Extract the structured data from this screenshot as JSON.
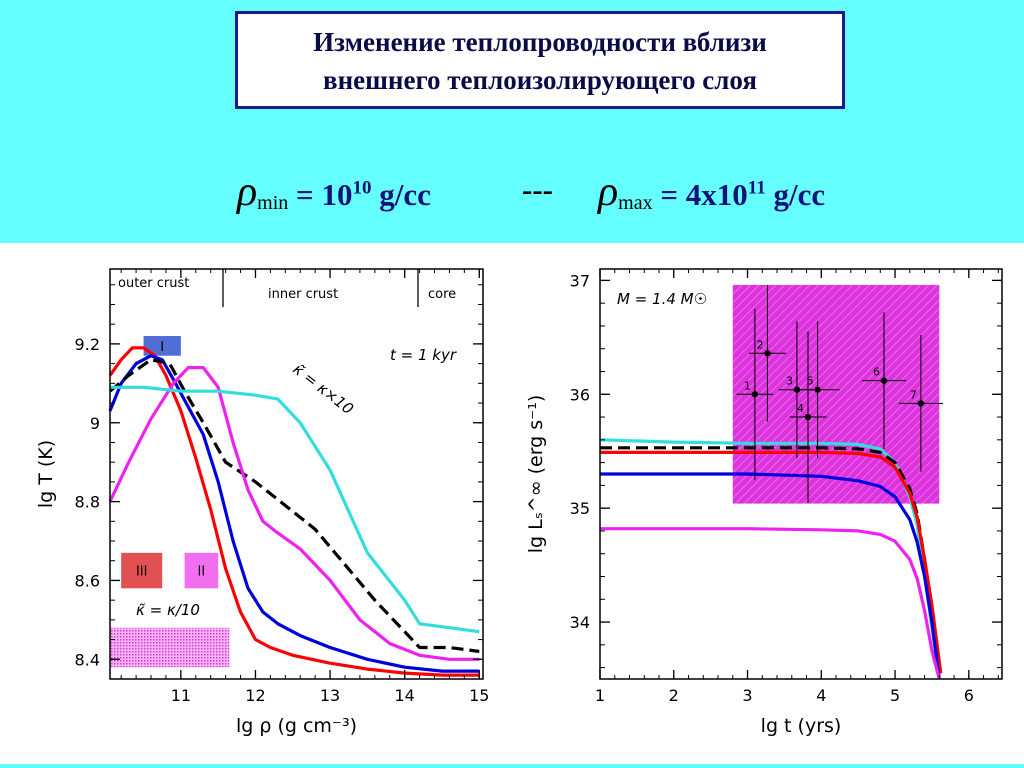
{
  "title": {
    "line1": "Изменение теплопроводности вблизи",
    "line2": "внешнего теплоизолирующего слоя"
  },
  "formula": {
    "rho_symbol": "ρ",
    "min_sub": "min",
    "min_value": "= 10",
    "min_exp": "10",
    "min_unit": " g/cc",
    "separator": "---",
    "max_sub": "max",
    "max_value": "= 4x10",
    "max_exp": "11",
    "max_unit": " g/cc"
  },
  "chart_data": [
    {
      "type": "line",
      "xlabel": "lg ρ   (g cm⁻³)",
      "ylabel": "lg T (K)",
      "xlim": [
        10.05,
        15.05
      ],
      "ylim": [
        8.35,
        9.39
      ],
      "xticks": [
        "11",
        "12",
        "13",
        "14",
        "15"
      ],
      "yticks": [
        "8.4",
        "8.6",
        "8.8",
        "9",
        "9.2"
      ],
      "regions": [
        "outer crust",
        "inner crust",
        "core"
      ],
      "annotations": [
        "t = 1 kyr",
        "κ̃ = κ×10",
        "κ̃ = κ/10"
      ],
      "boxes": [
        {
          "label": "I",
          "color": "#3355cc",
          "x": [
            10.5,
            11.0
          ],
          "y": [
            9.17,
            9.22
          ]
        },
        {
          "label": "III",
          "color": "#dd3333",
          "x": [
            10.2,
            10.75
          ],
          "y": [
            8.58,
            8.67
          ]
        },
        {
          "label": "II",
          "color": "#ee55ee",
          "x": [
            11.05,
            11.5
          ],
          "y": [
            8.58,
            8.67
          ]
        },
        {
          "label": "",
          "color": "#ee55ee",
          "x": [
            10.05,
            11.65
          ],
          "y": [
            8.38,
            8.48
          ]
        }
      ],
      "series": [
        {
          "color": "#ff0000",
          "style": "solid",
          "x": [
            10.05,
            10.2,
            10.35,
            10.5,
            10.65,
            10.8,
            11.0,
            11.2,
            11.4,
            11.6,
            11.8,
            12.0,
            12.2,
            12.5,
            13.0,
            13.5,
            14.0,
            14.5,
            15.0
          ],
          "y": [
            9.12,
            9.16,
            9.19,
            9.19,
            9.17,
            9.12,
            9.03,
            8.91,
            8.78,
            8.63,
            8.52,
            8.45,
            8.43,
            8.41,
            8.39,
            8.375,
            8.365,
            8.36,
            8.36
          ]
        },
        {
          "color": "#0000dd",
          "style": "solid",
          "x": [
            10.05,
            10.2,
            10.4,
            10.6,
            10.75,
            10.9,
            11.1,
            11.3,
            11.5,
            11.7,
            11.9,
            12.1,
            12.3,
            12.6,
            13.0,
            13.5,
            14.0,
            14.5,
            15.0
          ],
          "y": [
            9.03,
            9.1,
            9.15,
            9.17,
            9.16,
            9.11,
            9.04,
            8.97,
            8.85,
            8.7,
            8.58,
            8.52,
            8.49,
            8.46,
            8.43,
            8.4,
            8.38,
            8.37,
            8.37
          ]
        },
        {
          "color": "#000000",
          "style": "dashed",
          "x": [
            10.05,
            10.3,
            10.6,
            10.85,
            11.05,
            11.3,
            11.6,
            12.0,
            12.4,
            12.8,
            13.2,
            13.6,
            14.0,
            14.2,
            14.6,
            15.0
          ],
          "y": [
            9.08,
            9.12,
            9.16,
            9.15,
            9.08,
            9.0,
            8.9,
            8.85,
            8.79,
            8.73,
            8.64,
            8.55,
            8.47,
            8.43,
            8.43,
            8.42
          ]
        },
        {
          "color": "#ee22ee",
          "style": "solid",
          "x": [
            10.05,
            10.3,
            10.6,
            10.9,
            11.1,
            11.3,
            11.5,
            11.7,
            11.9,
            12.1,
            12.3,
            12.6,
            13.0,
            13.4,
            13.8,
            14.2,
            14.6,
            15.0
          ],
          "y": [
            8.8,
            8.9,
            9.01,
            9.1,
            9.14,
            9.14,
            9.09,
            8.95,
            8.83,
            8.75,
            8.72,
            8.68,
            8.6,
            8.5,
            8.44,
            8.41,
            8.4,
            8.4
          ]
        },
        {
          "color": "#33dddd",
          "style": "solid",
          "x": [
            10.05,
            10.5,
            11.0,
            11.5,
            12.0,
            12.3,
            12.6,
            13.0,
            13.5,
            14.0,
            14.2,
            14.6,
            15.0
          ],
          "y": [
            9.09,
            9.09,
            9.08,
            9.08,
            9.07,
            9.06,
            9.0,
            8.88,
            8.67,
            8.55,
            8.49,
            8.48,
            8.47
          ]
        }
      ]
    },
    {
      "type": "line",
      "xlabel": "lg t   (yrs)",
      "ylabel": "lg Lₛ^∞ (erg s⁻¹)",
      "xlim": [
        1.0,
        6.45
      ],
      "ylim": [
        33.5,
        37.1
      ],
      "xticks": [
        "1",
        "2",
        "3",
        "4",
        "5",
        "6"
      ],
      "yticks": [
        "34",
        "35",
        "36",
        "37"
      ],
      "annotations": [
        "M = 1.4 M☉"
      ],
      "observation_box": {
        "color": "#dd33dd",
        "x": [
          2.8,
          5.6
        ],
        "y": [
          35.04,
          36.96
        ]
      },
      "points": [
        {
          "label": "1",
          "x": 3.1,
          "y": 36.0,
          "xerr": 0.25,
          "yerr": [
            0.75,
            0.75
          ]
        },
        {
          "label": "2",
          "x": 3.27,
          "y": 36.36,
          "xerr": 0.25,
          "yerr": [
            0.6,
            0.6
          ]
        },
        {
          "label": "3",
          "x": 3.67,
          "y": 36.04,
          "xerr": 0.25,
          "yerr": [
            0.6,
            0.6
          ]
        },
        {
          "label": "4",
          "x": 3.82,
          "y": 35.8,
          "xerr": 0.25,
          "yerr": [
            0.75,
            0.75
          ]
        },
        {
          "label": "5",
          "x": 3.95,
          "y": 36.04,
          "xerr": 0.3,
          "yerr": [
            0.6,
            0.6
          ]
        },
        {
          "label": "6",
          "x": 4.85,
          "y": 36.12,
          "xerr": 0.3,
          "yerr": [
            0.6,
            0.6
          ]
        },
        {
          "label": "7",
          "x": 5.35,
          "y": 35.92,
          "xerr": 0.3,
          "yerr": [
            0.6,
            0.6
          ]
        }
      ],
      "series": [
        {
          "color": "#33dddd",
          "style": "solid",
          "x": [
            1.0,
            2.0,
            3.0,
            4.0,
            4.5,
            4.8,
            5.0,
            5.2,
            5.3,
            5.4,
            5.5,
            5.6
          ],
          "y": [
            35.6,
            35.58,
            35.57,
            35.57,
            35.56,
            35.52,
            35.4,
            35.1,
            34.85,
            34.4,
            33.95,
            33.5
          ]
        },
        {
          "color": "#000000",
          "style": "dashed",
          "x": [
            1.0,
            2.0,
            3.0,
            4.0,
            4.5,
            4.8,
            5.0,
            5.2,
            5.3,
            5.4,
            5.5,
            5.6
          ],
          "y": [
            35.53,
            35.53,
            35.53,
            35.53,
            35.52,
            35.49,
            35.4,
            35.17,
            34.95,
            34.55,
            34.1,
            33.55
          ]
        },
        {
          "color": "#ff0000",
          "style": "solid",
          "x": [
            1.0,
            2.0,
            3.0,
            4.0,
            4.5,
            4.8,
            5.0,
            5.2,
            5.3,
            5.4,
            5.5,
            5.62
          ],
          "y": [
            35.49,
            35.49,
            35.49,
            35.49,
            35.48,
            35.45,
            35.36,
            35.13,
            34.92,
            34.55,
            34.15,
            33.55
          ]
        },
        {
          "color": "#0000dd",
          "style": "solid",
          "x": [
            1.0,
            2.0,
            3.0,
            4.0,
            4.5,
            4.8,
            5.0,
            5.2,
            5.3,
            5.4,
            5.5,
            5.6
          ],
          "y": [
            35.3,
            35.3,
            35.3,
            35.28,
            35.24,
            35.19,
            35.1,
            34.9,
            34.7,
            34.4,
            34.0,
            33.5
          ]
        },
        {
          "color": "#ee22ee",
          "style": "solid",
          "x": [
            1.0,
            2.0,
            3.0,
            4.0,
            4.5,
            4.8,
            5.0,
            5.2,
            5.3,
            5.4,
            5.5,
            5.6
          ],
          "y": [
            34.82,
            34.82,
            34.82,
            34.81,
            34.8,
            34.77,
            34.71,
            34.55,
            34.38,
            34.1,
            33.75,
            33.5
          ]
        }
      ]
    }
  ]
}
